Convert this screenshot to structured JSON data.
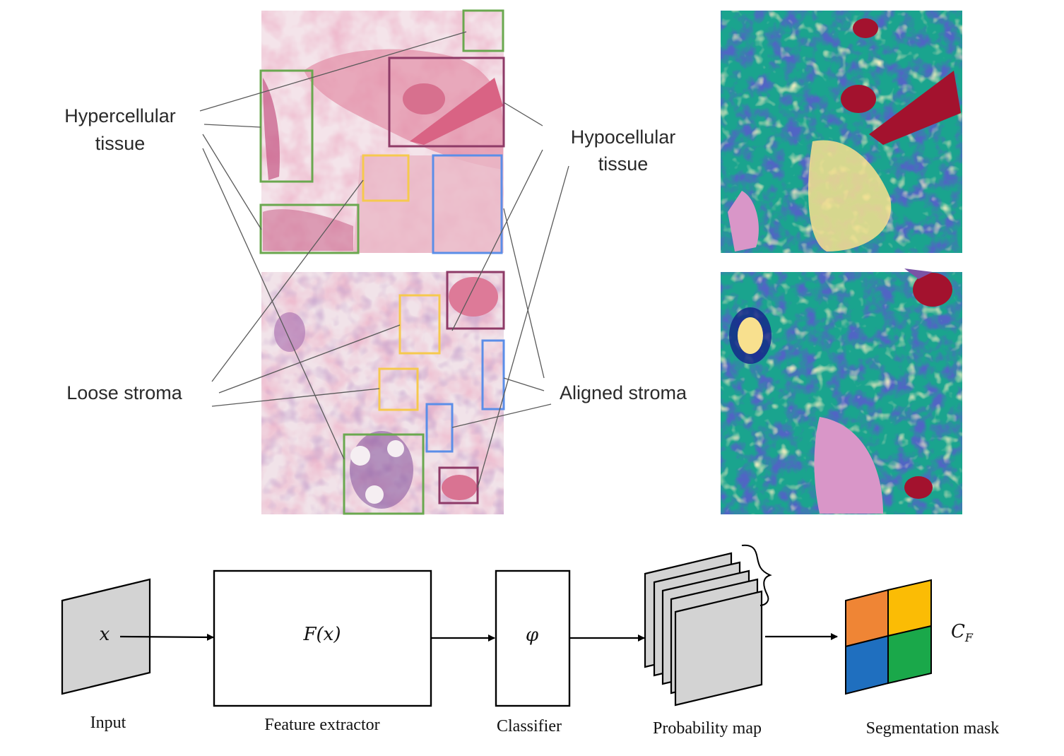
{
  "tissue_labels": {
    "hypercellular_line1": "Hypercellular",
    "hypercellular_line2": "tissue",
    "hypocellular_line1": "Hypocellular",
    "hypocellular_line2": "tissue",
    "loose_stroma": "Loose stroma",
    "aligned_stroma": "Aligned stroma"
  },
  "box_colors": {
    "hypercellular": "#6aa84f",
    "hypocellular": "#8e3a67",
    "loose_stroma": "#f6c94e",
    "aligned_stroma": "#5b8ee8"
  },
  "segmentation_colors": {
    "background": "#1aa48e",
    "dark_blue": "#14208a",
    "yellow": "#f8e08e",
    "red": "#a3122e",
    "purple": "#7a54a6",
    "pink": "#d996c8"
  },
  "pipeline": {
    "input_symbol": "x",
    "input_label": "Input",
    "feature_symbol": "F(x)",
    "feature_label": "Feature extractor",
    "classifier_symbol": "φ",
    "classifier_label": "Classifier",
    "probability_label": "Probability map",
    "output_symbol_main": "C",
    "output_symbol_sub": "F",
    "output_label": "Segmentation mask",
    "mask_colors": [
      "#ef8535",
      "#fbbc05",
      "#1f6fbf",
      "#1aa84a"
    ]
  }
}
